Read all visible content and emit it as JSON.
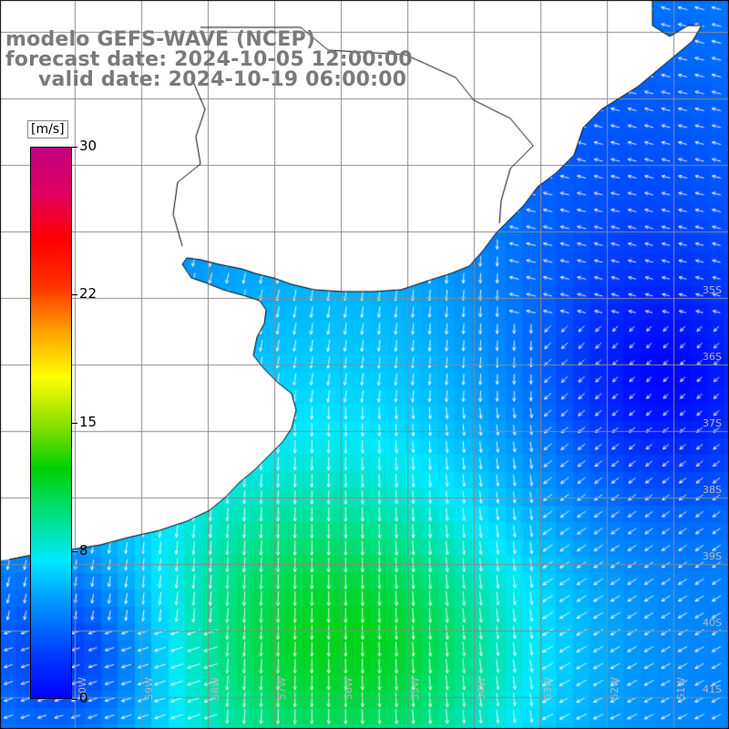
{
  "title": {
    "line1": "modelo GEFS-WAVE (NCEP)",
    "line2": "forecast date: 2024-10-05 12:00:00",
    "line3": "valid date: 2024-10-19 06:00:00"
  },
  "colorbar": {
    "units": "[m/s]",
    "min": 0,
    "max": 30,
    "ticks": [
      "30",
      "22",
      "15",
      "8",
      "0"
    ],
    "tick_values": [
      30,
      22,
      15,
      8,
      0
    ],
    "stops": [
      "#0000ff",
      "#0040ff",
      "#0090ff",
      "#00e8ff",
      "#00e080",
      "#00d000",
      "#90e000",
      "#ffff00",
      "#ffa000",
      "#ff3000",
      "#ff0000",
      "#e00060",
      "#c00080"
    ]
  },
  "map": {
    "lat_labels": [
      "35S",
      "36S",
      "37S",
      "38S",
      "39S",
      "40S",
      "41S"
    ],
    "lon_labels": [
      "60W",
      "59W",
      "58W",
      "57W",
      "56W",
      "55W",
      "54W",
      "53W",
      "52W",
      "51W"
    ],
    "land_color": "#ffffff",
    "grid_color": "#8a8a8a",
    "arrow_color": "#ffffff",
    "coast_color": "#000000"
  }
}
